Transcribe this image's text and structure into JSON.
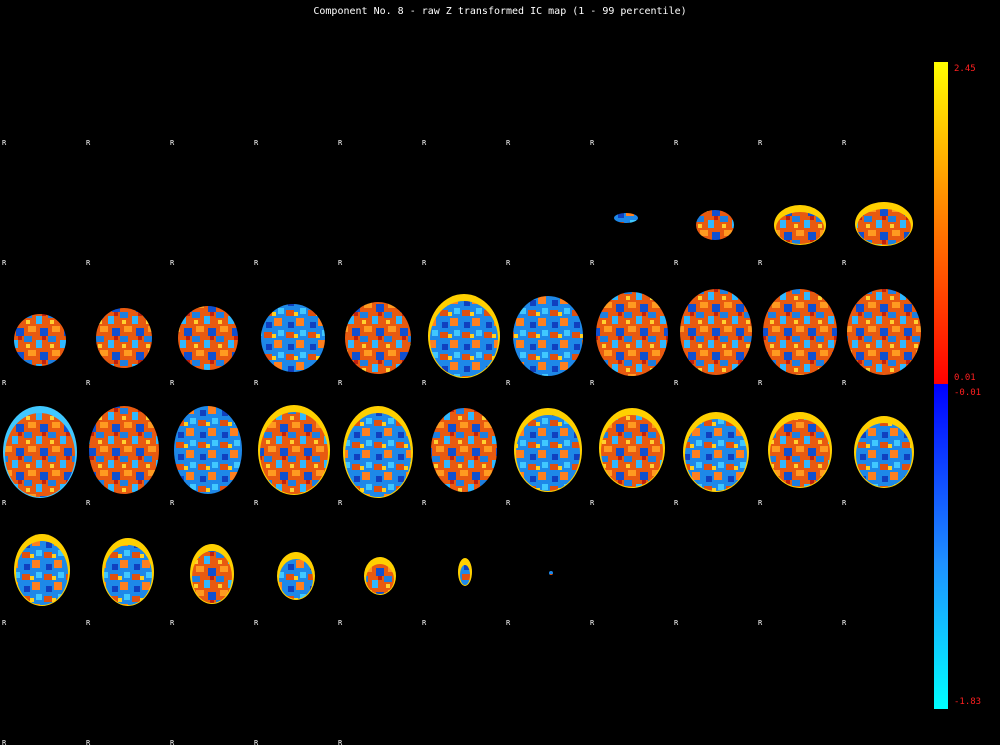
{
  "title": "Component No. 8 - raw Z transformed IC map (1 - 99 percentile)",
  "orientation_marker": "R",
  "colorbar": {
    "max_label": "2.45",
    "pos_min_label": "0.01",
    "neg_min_label": "-0.01",
    "min_label": "-1.83",
    "positive_colors": [
      "#ff0000",
      "#ff7a00",
      "#ffff00"
    ],
    "negative_colors": [
      "#0000ff",
      "#1e90ff",
      "#00ffff"
    ]
  },
  "montage": {
    "rows": 6,
    "cols": 11,
    "slices_shown": 40
  }
}
